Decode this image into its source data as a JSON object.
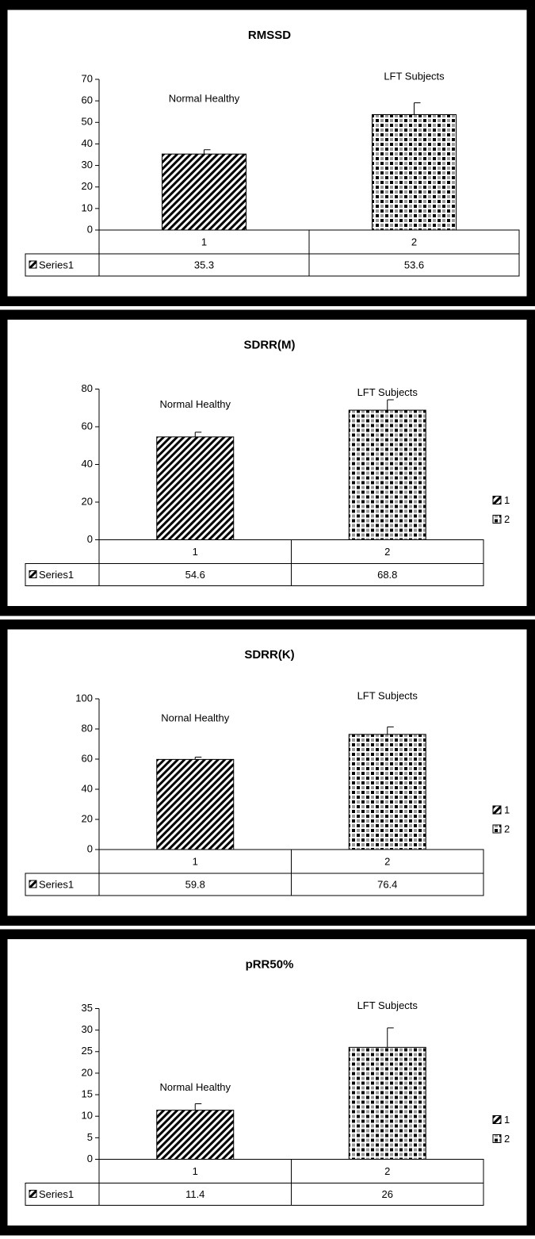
{
  "chart_data": [
    {
      "type": "bar",
      "title": "RMSSD",
      "categories": [
        "1",
        "2"
      ],
      "series": [
        {
          "name": "Series1",
          "values": [
            35.3,
            53.6
          ],
          "errors": [
            2,
            5.5
          ]
        }
      ],
      "annotations": [
        "Normal Healthy",
        "LFT Subjects"
      ],
      "ylim": [
        0,
        70
      ],
      "yticks": [
        0,
        10,
        20,
        30,
        40,
        50,
        60,
        70
      ],
      "legend": false,
      "data_table": true
    },
    {
      "type": "bar",
      "title": "SDRR(M)",
      "categories": [
        "1",
        "2"
      ],
      "series": [
        {
          "name": "Series1",
          "values": [
            54.6,
            68.8
          ],
          "errors": [
            2.5,
            5.5
          ]
        }
      ],
      "annotations": [
        "Normal Healthy",
        "LFT Subjects"
      ],
      "ylim": [
        0,
        80
      ],
      "yticks": [
        0,
        20,
        40,
        60,
        80
      ],
      "legend": true,
      "data_table": true
    },
    {
      "type": "bar",
      "title": "SDRR(K)",
      "categories": [
        "1",
        "2"
      ],
      "series": [
        {
          "name": "Series1",
          "values": [
            59.8,
            76.4
          ],
          "errors": [
            1.5,
            5
          ]
        }
      ],
      "annotations": [
        "Nornal Healthy",
        "LFT Subjects"
      ],
      "ylim": [
        0,
        100
      ],
      "yticks": [
        0,
        20,
        40,
        60,
        80,
        100
      ],
      "legend": true,
      "data_table": true
    },
    {
      "type": "bar",
      "title": "pRR50%",
      "categories": [
        "1",
        "2"
      ],
      "series": [
        {
          "name": "Series1",
          "values": [
            11.4,
            26
          ],
          "errors": [
            1.5,
            4.5
          ]
        }
      ],
      "annotations": [
        "Normal Healthy",
        "LFT Subjects"
      ],
      "ylim": [
        0,
        35
      ],
      "yticks": [
        0,
        5,
        10,
        15,
        20,
        25,
        30,
        35
      ],
      "legend": true,
      "data_table": true
    }
  ]
}
